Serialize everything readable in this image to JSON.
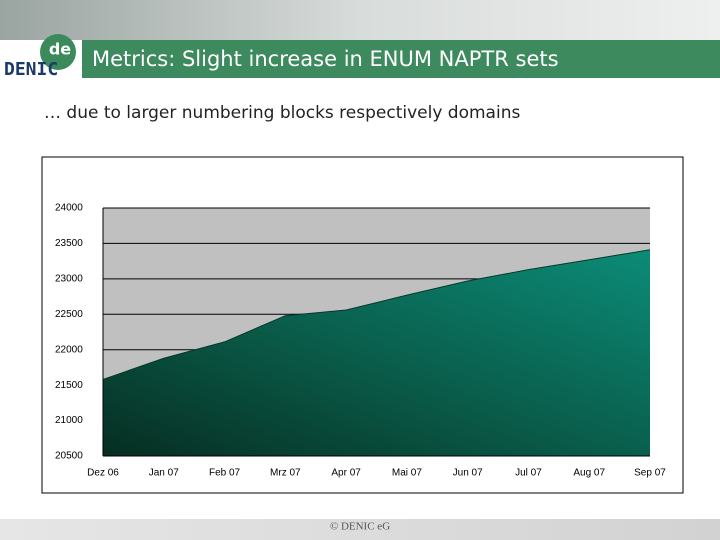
{
  "slide": {
    "title": "Metrics: Slight increase in ENUM NAPTR sets",
    "subtitle": "… due to larger numbering blocks respectively domains",
    "logo": {
      "badge": "de",
      "text": "DENIC"
    },
    "footer": "© DENIC eG"
  },
  "chart_data": {
    "type": "area",
    "categories": [
      "Dez 06",
      "Jan 07",
      "Feb 07",
      "Mrz 07",
      "Apr 07",
      "Mai 07",
      "Jun 07",
      "Jul 07",
      "Aug 07",
      "Sep 07"
    ],
    "series": [
      {
        "name": "ENUM NAPTR sets",
        "color": "#0b8c78",
        "values": [
          21580,
          21880,
          22110,
          22480,
          22560,
          22770,
          22970,
          23130,
          23270,
          23410
        ]
      }
    ],
    "ylim": [
      20500,
      24000
    ],
    "yticks": [
      20500,
      21000,
      21500,
      22000,
      22500,
      23000,
      23500,
      24000
    ],
    "grid": true,
    "legend": false
  }
}
